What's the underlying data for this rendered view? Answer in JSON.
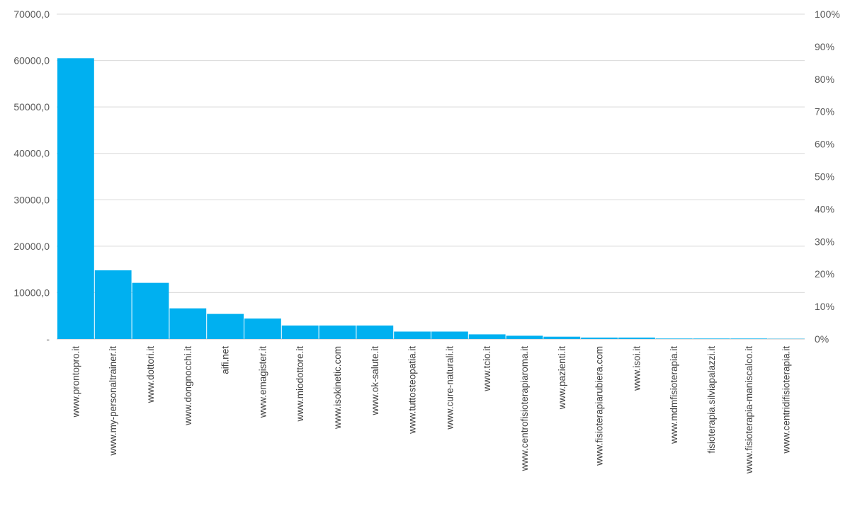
{
  "chart_data": {
    "type": "bar",
    "title": "",
    "xlabel": "",
    "ylabel": "",
    "categories": [
      "www.prontopro.it",
      "www.my-personaltrainer.it",
      "www.dottori.it",
      "www.dongnocchi.it",
      "aifi.net",
      "www.emagister.it",
      "www.miodottore.it",
      "www.isokinetic.com",
      "www.ok-salute.it",
      "www.tuttosteopatia.it",
      "www.cure-naturali.it",
      "www.tcio.it",
      "www.centrofisioterapiaroma.it",
      "www.pazienti.it",
      "www.fisioterapiarubiera.com",
      "www.isoi.it",
      "www.mdmfisioterapia.it",
      "fisioterapia.silviapalazzi.it",
      "www.fisioterapia-maniscalco.it",
      "www.centridifisioterapia.it"
    ],
    "values": [
      60500,
      14800,
      12100,
      6600,
      5400,
      4400,
      2900,
      2900,
      2900,
      1600,
      1600,
      1000,
      700,
      500,
      300,
      300,
      100,
      100,
      100,
      50
    ],
    "ylim": [
      0,
      70000
    ],
    "y_ticks": [
      "-",
      "10000,0",
      "20000,0",
      "30000,0",
      "40000,0",
      "50000,0",
      "60000,0",
      "70000,0"
    ],
    "y2lim": [
      0,
      1
    ],
    "y2_ticks": [
      "0%",
      "10%",
      "20%",
      "30%",
      "40%",
      "50%",
      "60%",
      "70%",
      "80%",
      "90%",
      "100%"
    ],
    "grid": true,
    "colors": {
      "bar": "#00b0f0",
      "grid": "#d9d9d9",
      "axis": "#bfbfbf"
    }
  }
}
